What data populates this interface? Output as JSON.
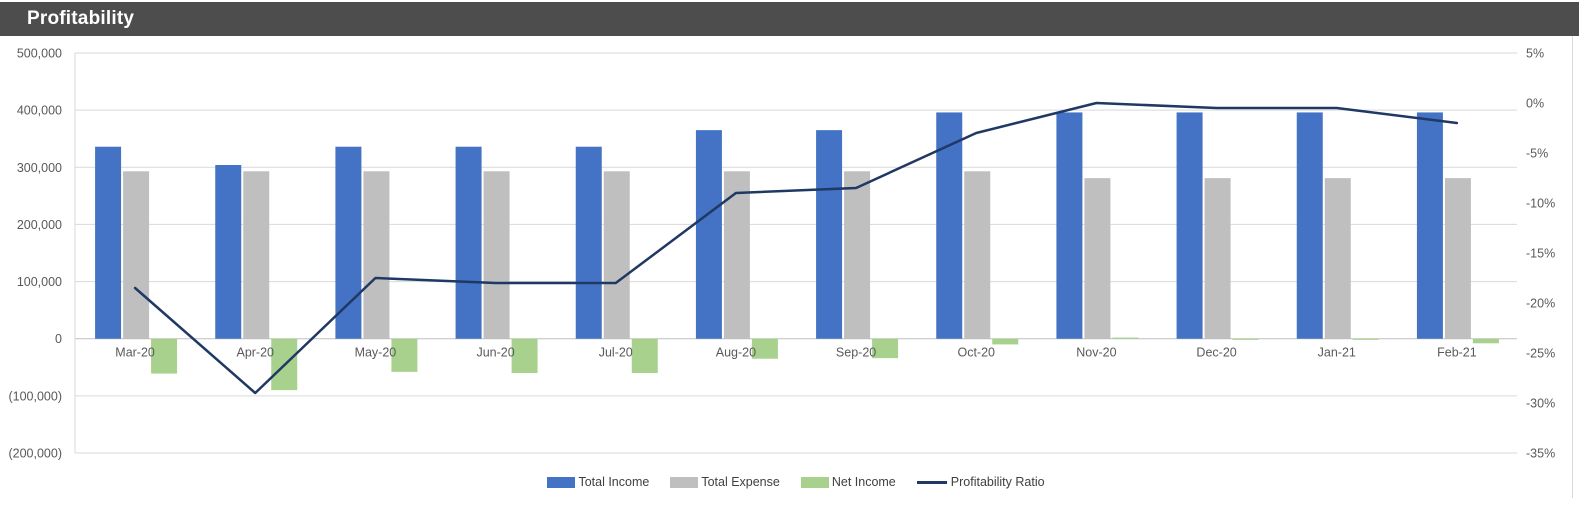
{
  "header": {
    "title": "Profitability"
  },
  "colors": {
    "header_bg": "#4D4D4D",
    "header_text": "#FFFFFF",
    "grid": "#D9D9D9",
    "zero_axis_line": "#BFBFBF",
    "axis_text": "#595959",
    "legend_text": "#404040",
    "card_border": "#D9D9D9",
    "income_bar": "#4472C4",
    "expense_bar": "#BFBFBF",
    "net_income_bar": "#A9D18E",
    "ratio_line": "#203864",
    "background": "#FFFFFF"
  },
  "chart_data": {
    "type": "combo",
    "title": "Profitability",
    "grid": "horizontal",
    "legend_position": "bottom",
    "categories": [
      "Mar-20",
      "Apr-20",
      "May-20",
      "Jun-20",
      "Jul-20",
      "Aug-20",
      "Sep-20",
      "Oct-20",
      "Nov-20",
      "Dec-20",
      "Jan-21",
      "Feb-21"
    ],
    "series": [
      {
        "name": "Total Income",
        "type": "bar",
        "axis": "left",
        "color": "#4472C4",
        "values": [
          336000,
          304000,
          336000,
          336000,
          336000,
          365000,
          365000,
          396000,
          396000,
          396000,
          396000,
          396000
        ]
      },
      {
        "name": "Total Expense",
        "type": "bar",
        "axis": "left",
        "color": "#BFBFBF",
        "values": [
          293000,
          293000,
          293000,
          293000,
          293000,
          293000,
          293000,
          293000,
          281000,
          281000,
          281000,
          281000
        ]
      },
      {
        "name": "Net Income",
        "type": "bar",
        "axis": "left",
        "color": "#A9D18E",
        "values": [
          -61000,
          -90000,
          -58000,
          -60000,
          -60000,
          -35000,
          -34000,
          -10000,
          2000,
          -2000,
          -2000,
          -8000
        ]
      },
      {
        "name": "Profitability Ratio",
        "type": "line",
        "axis": "right",
        "color": "#203864",
        "values": [
          -18.5,
          -29,
          -17.5,
          -18,
          -18,
          -9,
          -8.5,
          -3,
          0,
          -0.5,
          -0.5,
          -2
        ]
      }
    ],
    "left_axis": {
      "min": -200000,
      "max": 500000,
      "step": 100000,
      "tick_labels": [
        "500,000",
        "400,000",
        "300,000",
        "200,000",
        "100,000",
        "0",
        "(100,000)",
        "(200,000)"
      ]
    },
    "right_axis": {
      "min": -35,
      "max": 5,
      "step": 5,
      "unit": "%",
      "tick_labels": [
        "5%",
        "0%",
        "-5%",
        "-10%",
        "-15%",
        "-20%",
        "-25%",
        "-30%",
        "-35%"
      ]
    },
    "legend": [
      "Total Income",
      "Total Expense",
      "Net Income",
      "Profitability Ratio"
    ]
  }
}
